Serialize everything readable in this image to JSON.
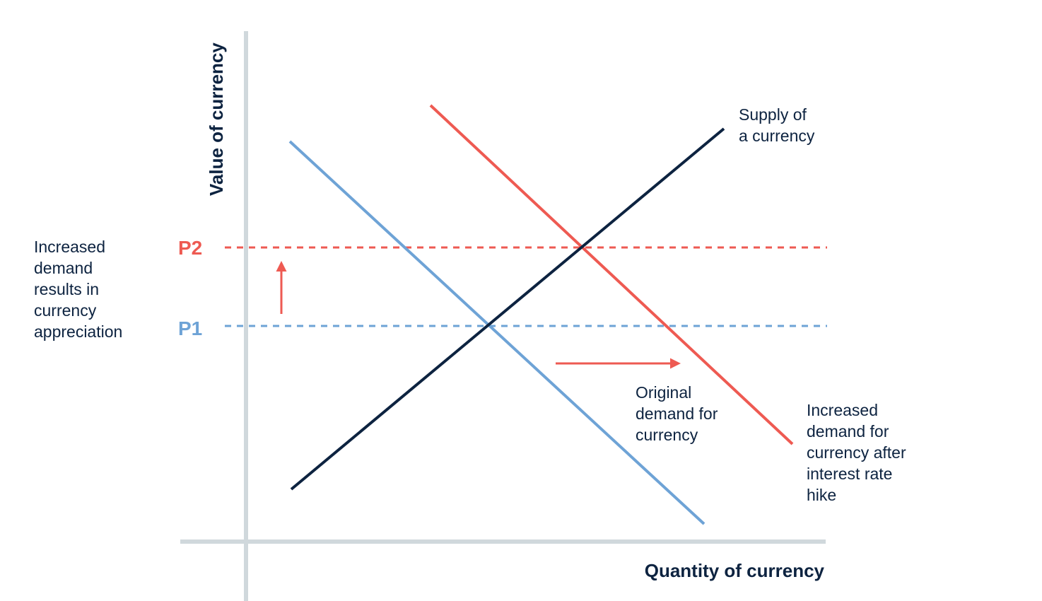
{
  "diagram": {
    "axes": {
      "y_label": "Value of currency",
      "x_label": "Quantity of currency"
    },
    "price_levels": {
      "p2": "P2",
      "p1": "P1"
    },
    "curves": {
      "supply": [
        "Supply of",
        "a currency"
      ],
      "original_demand": [
        "Original",
        "demand for",
        "currency"
      ],
      "increased_demand": [
        "Increased",
        "demand for",
        "currency after",
        "interest rate",
        "hike"
      ]
    },
    "annotation": [
      "Increased",
      "demand",
      "results in",
      "currency",
      "appreciation"
    ],
    "colors": {
      "axis": "#d0d8dc",
      "supply": "#0d2340",
      "original_demand": "#6ea3d6",
      "increased_demand": "#ee5a52",
      "text": "#0d2340"
    }
  }
}
